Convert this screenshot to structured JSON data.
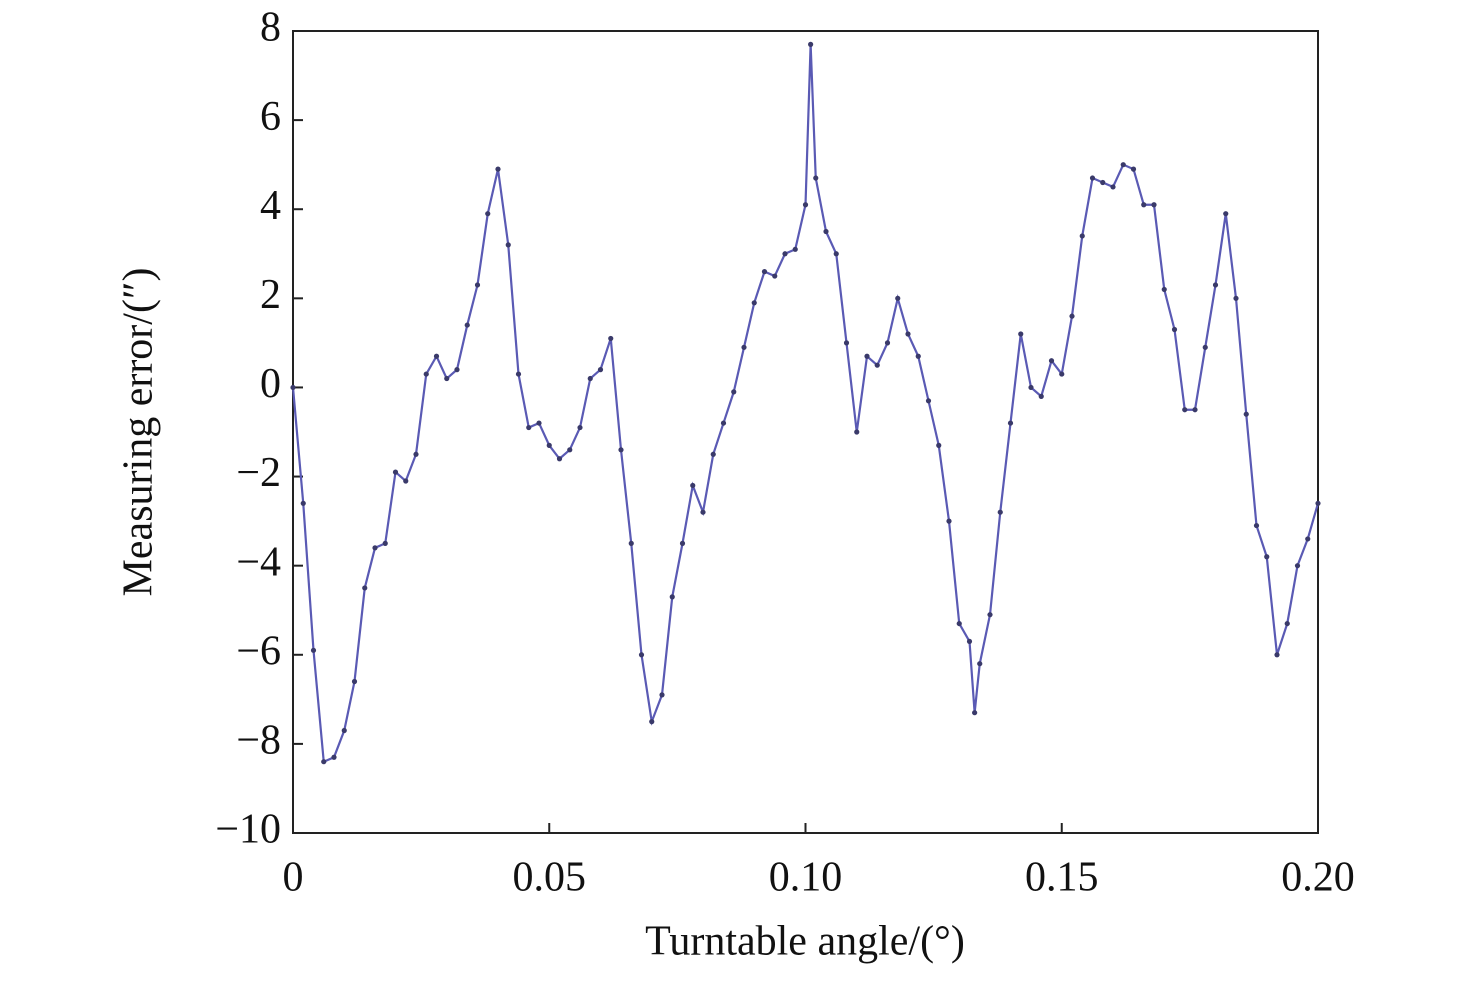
{
  "chart_data": {
    "type": "line",
    "xlabel": "Turntable angle/(°)",
    "ylabel": "Measuring error/(″)",
    "x": [
      0,
      0.002,
      0.004,
      0.006,
      0.008,
      0.01,
      0.012,
      0.014,
      0.016,
      0.018,
      0.02,
      0.022,
      0.024,
      0.026,
      0.028,
      0.03,
      0.032,
      0.034,
      0.036,
      0.038,
      0.04,
      0.042,
      0.044,
      0.046,
      0.048,
      0.05,
      0.052,
      0.054,
      0.056,
      0.058,
      0.06,
      0.062,
      0.064,
      0.066,
      0.068,
      0.07,
      0.072,
      0.074,
      0.076,
      0.078,
      0.08,
      0.082,
      0.084,
      0.086,
      0.088,
      0.09,
      0.092,
      0.094,
      0.096,
      0.098,
      0.1,
      0.101,
      0.102,
      0.104,
      0.106,
      0.108,
      0.11,
      0.112,
      0.114,
      0.116,
      0.118,
      0.12,
      0.122,
      0.124,
      0.126,
      0.128,
      0.13,
      0.132,
      0.133,
      0.134,
      0.136,
      0.138,
      0.14,
      0.142,
      0.144,
      0.146,
      0.148,
      0.15,
      0.152,
      0.154,
      0.156,
      0.158,
      0.16,
      0.162,
      0.164,
      0.166,
      0.168,
      0.17,
      0.172,
      0.174,
      0.176,
      0.178,
      0.18,
      0.182,
      0.184,
      0.186,
      0.188,
      0.19,
      0.192,
      0.194,
      0.196,
      0.198,
      0.2
    ],
    "values": [
      0,
      -2.6,
      -5.9,
      -8.4,
      -8.3,
      -7.7,
      -6.6,
      -4.5,
      -3.6,
      -3.5,
      -1.9,
      -2.1,
      -1.5,
      0.3,
      0.7,
      0.2,
      0.4,
      1.4,
      2.3,
      3.9,
      4.9,
      3.2,
      0.3,
      -0.9,
      -0.8,
      -1.3,
      -1.6,
      -1.4,
      -0.9,
      0.2,
      0.4,
      1.1,
      -1.4,
      -3.5,
      -6.0,
      -7.5,
      -6.9,
      -4.7,
      -3.5,
      -2.2,
      -2.8,
      -1.5,
      -0.8,
      -0.1,
      0.9,
      1.9,
      2.6,
      2.5,
      3.0,
      3.1,
      4.1,
      7.7,
      4.7,
      3.5,
      3.0,
      1.0,
      -1.0,
      0.7,
      0.5,
      1.0,
      2.0,
      1.2,
      0.7,
      -0.3,
      -1.3,
      -3.0,
      -5.3,
      -5.7,
      -7.3,
      -6.2,
      -5.1,
      -2.8,
      -0.8,
      1.2,
      0.0,
      -0.2,
      0.6,
      0.3,
      1.6,
      3.4,
      4.7,
      4.6,
      4.5,
      5.0,
      4.9,
      4.1,
      4.1,
      2.2,
      1.3,
      -0.5,
      -0.5,
      0.9,
      2.3,
      3.9,
      2.0,
      -0.6,
      -3.1,
      -3.8,
      -6.0,
      -5.3,
      -4.0,
      -3.4,
      -2.6
    ],
    "color": "#5a5ab4",
    "marker_color": "#3a3a6a",
    "xlim": [
      0,
      0.2
    ],
    "xticks": [
      0,
      0.05,
      {
        "value": 0.1,
        "label": "0.10"
      },
      0.15,
      {
        "value": 0.2,
        "label": "0.20"
      }
    ],
    "ylim": [
      -10,
      8
    ],
    "yticks": [
      {
        "value": -10,
        "label": "−10"
      },
      {
        "value": -8,
        "label": "−8"
      },
      {
        "value": -6,
        "label": "−6"
      },
      {
        "value": -4,
        "label": "−4"
      },
      {
        "value": -2,
        "label": "−2"
      },
      0,
      2,
      4,
      6,
      8
    ]
  }
}
